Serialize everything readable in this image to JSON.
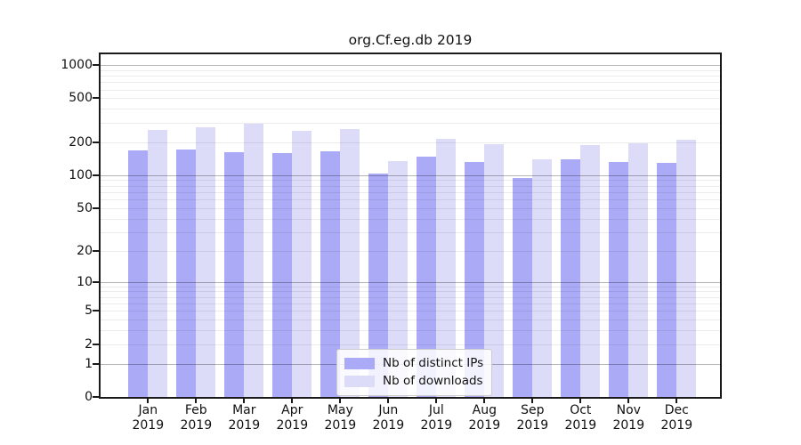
{
  "chart_data": {
    "type": "bar",
    "title": "org.Cf.eg.db 2019",
    "categories": [
      "Jan 2019",
      "Feb 2019",
      "Mar 2019",
      "Apr 2019",
      "May 2019",
      "Jun 2019",
      "Jul 2019",
      "Aug 2019",
      "Sep 2019",
      "Oct 2019",
      "Nov 2019",
      "Dec 2019"
    ],
    "series": [
      {
        "name": "Nb of distinct IPs",
        "color": "#aaaaf7",
        "values": [
          167,
          170,
          161,
          160,
          165,
          104,
          148,
          133,
          94,
          140,
          133,
          130
        ]
      },
      {
        "name": "Nb of downloads",
        "color": "#dcdcf9",
        "values": [
          260,
          275,
          292,
          254,
          265,
          135,
          216,
          191,
          139,
          189,
          196,
          212
        ]
      }
    ],
    "xlabel": "",
    "ylabel": "",
    "yscale": "log1p",
    "yticks": [
      0,
      1,
      2,
      5,
      10,
      20,
      50,
      100,
      200,
      500,
      1000
    ],
    "ylim": [
      0,
      1250
    ],
    "grid": true,
    "legend_position": "inside plot, lower center",
    "colors": {
      "grid_major": "#b5b5b5",
      "grid_minor": "#ebebeb",
      "axis": "#1a1a1a",
      "background": "#ffffff",
      "legend_border": "#cccccc"
    }
  }
}
